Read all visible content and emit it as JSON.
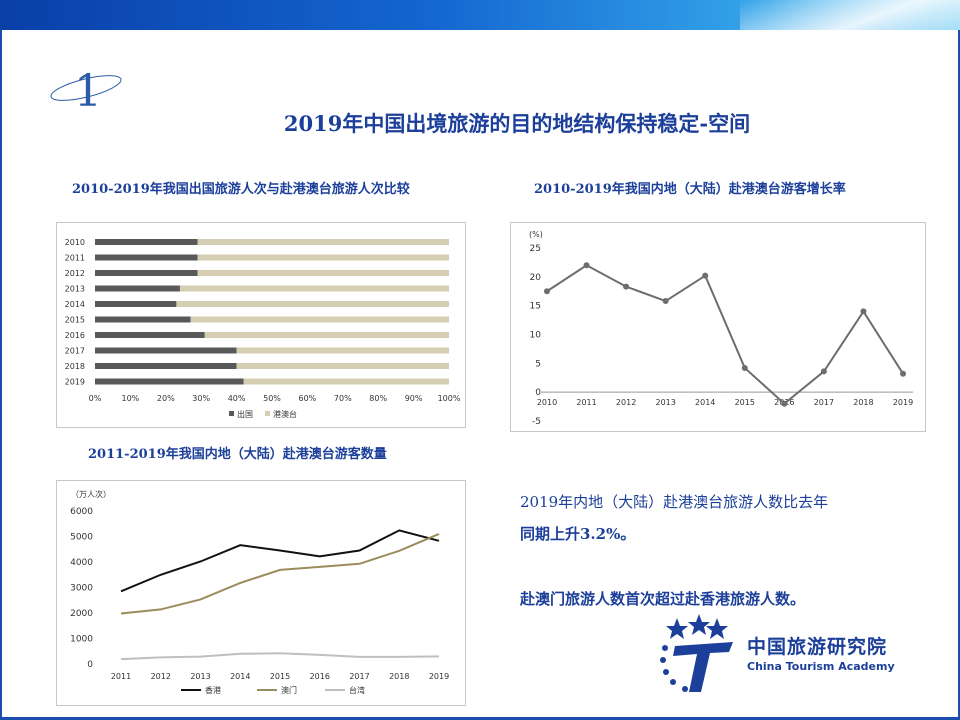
{
  "page": {
    "section_number": "1",
    "title": "2019年中国出境旅游的目的地结构保持稳定-空间",
    "subtitle_left": "2010-2019年我国出国旅游人次与赴港澳台旅游人次比较",
    "subtitle_right": "2010-2019年我国内地（大陆）赴港澳台游客增长率",
    "subtitle_bottom": "2011-2019年我国内地（大陆）赴港澳台游客数量",
    "text_line1": "2019年内地（大陆）赴港澳台旅游人数比去年",
    "text_line2": "同期上升3.2%。",
    "text_line3": "赴澳门旅游人数首次超过赴香港旅游人数。",
    "logo_cn": "中国旅游研究院",
    "logo_en": "China Tourism Academy"
  },
  "colors": {
    "title": "#1c3f9a",
    "bar_dark": "#595959",
    "bar_light": "#d6ceb2",
    "line_gray": "#6d6d6d",
    "hk": "#111111",
    "macau": "#9a8c5c",
    "taiwan": "#bfbfbf"
  },
  "chart_data": [
    {
      "type": "bar",
      "orientation": "horizontal-stacked-percent",
      "categories": [
        "2010",
        "2011",
        "2012",
        "2013",
        "2014",
        "2015",
        "2016",
        "2017",
        "2018",
        "2019"
      ],
      "series": [
        {
          "name": "出国",
          "values": [
            29,
            29,
            29,
            24,
            23,
            27,
            31,
            40,
            40,
            42
          ]
        },
        {
          "name": "港澳台",
          "values": [
            71,
            71,
            71,
            76,
            77,
            73,
            69,
            60,
            60,
            58
          ]
        }
      ],
      "xticks": [
        "0%",
        "10%",
        "20%",
        "30%",
        "40%",
        "50%",
        "60%",
        "70%",
        "80%",
        "90%",
        "100%"
      ],
      "xlim": [
        0,
        100
      ]
    },
    {
      "type": "line",
      "x": [
        "2010",
        "2011",
        "2012",
        "2013",
        "2014",
        "2015",
        "2016",
        "2017",
        "2018",
        "2019"
      ],
      "series": [
        {
          "values": [
            17.5,
            22.0,
            18.3,
            15.8,
            20.2,
            4.2,
            -2.0,
            3.6,
            14.0,
            3.2
          ]
        }
      ],
      "ylabel": "(%)",
      "yticks": [
        "25",
        "20",
        "15",
        "10",
        "5",
        "0",
        "-5"
      ],
      "ylim": [
        -5,
        25
      ]
    },
    {
      "type": "line",
      "x": [
        "2011",
        "2012",
        "2013",
        "2014",
        "2015",
        "2016",
        "2017",
        "2018",
        "2019"
      ],
      "series": [
        {
          "name": "香港",
          "values": [
            2850,
            3500,
            4020,
            4660,
            4450,
            4220,
            4450,
            5240,
            4830
          ]
        },
        {
          "name": "澳门",
          "values": [
            1980,
            2140,
            2530,
            3180,
            3690,
            3810,
            3930,
            4440,
            5100
          ]
        },
        {
          "name": "台湾",
          "values": [
            190,
            260,
            290,
            400,
            420,
            360,
            280,
            280,
            300
          ]
        }
      ],
      "ylabel": "（万人次）",
      "yticks": [
        "6000",
        "5000",
        "4000",
        "3000",
        "2000",
        "1000",
        "0"
      ],
      "ylim": [
        0,
        6000
      ]
    }
  ]
}
